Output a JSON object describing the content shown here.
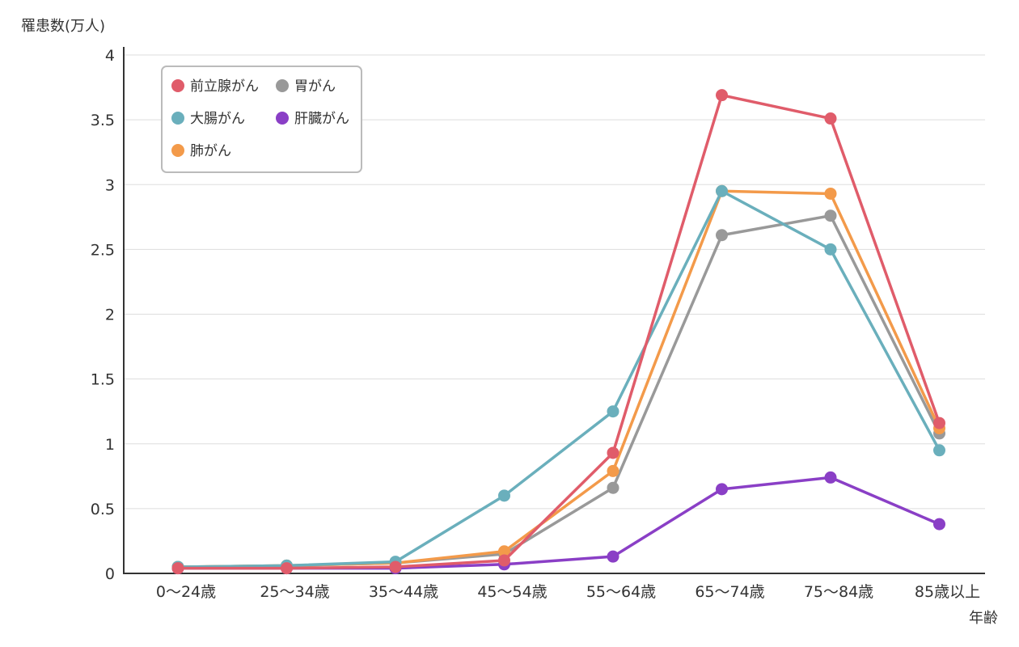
{
  "chart_data": {
    "type": "line",
    "ylabel": "罹患数(万人)",
    "xlabel": "年齢",
    "categories": [
      "0〜24歳",
      "25〜34歳",
      "35〜44歳",
      "45〜54歳",
      "55〜64歳",
      "65〜74歳",
      "75〜84歳",
      "85歳以上"
    ],
    "ylim": [
      0,
      4
    ],
    "yticks": [
      "0",
      "0.5",
      "1",
      "1.5",
      "2",
      "2.5",
      "3",
      "3.5",
      "4"
    ],
    "grid": true,
    "legend_position": "top-left",
    "series": [
      {
        "name": "前立腺がん",
        "color": "#e05c6a",
        "values": [
          0.04,
          0.04,
          0.05,
          0.1,
          0.93,
          3.69,
          3.51,
          1.16
        ]
      },
      {
        "name": "胃がん",
        "color": "#999999",
        "values": [
          0.05,
          0.06,
          0.08,
          0.15,
          0.66,
          2.61,
          2.76,
          1.08
        ]
      },
      {
        "name": "大腸がん",
        "color": "#6aafbc",
        "values": [
          0.05,
          0.06,
          0.09,
          0.6,
          1.25,
          2.95,
          2.5,
          0.95
        ]
      },
      {
        "name": "肝臓がん",
        "color": "#8a3fc6",
        "values": [
          0.04,
          0.04,
          0.04,
          0.07,
          0.13,
          0.65,
          0.74,
          0.38
        ]
      },
      {
        "name": "肺がん",
        "color": "#f39a4a",
        "values": [
          0.05,
          0.06,
          0.08,
          0.17,
          0.79,
          2.95,
          2.93,
          1.12
        ]
      }
    ]
  }
}
